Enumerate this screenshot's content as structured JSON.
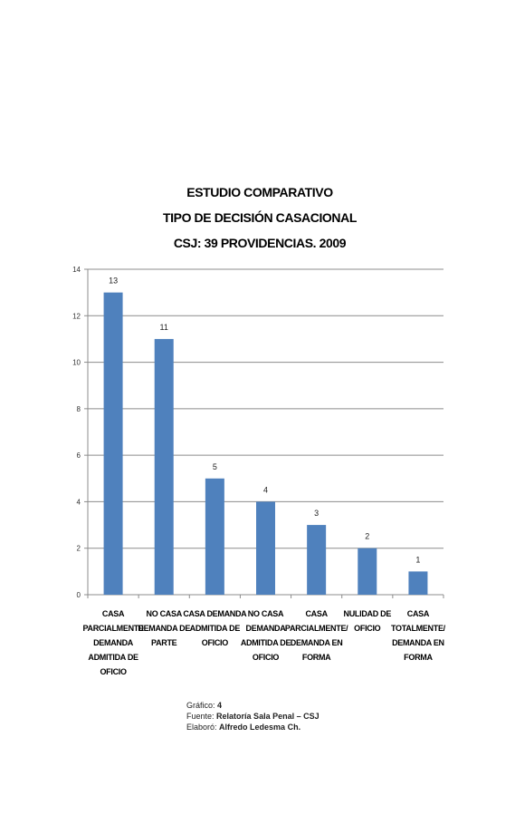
{
  "chart_data": {
    "type": "bar",
    "title": [
      "ESTUDIO COMPARATIVO",
      "TIPO DE DECISIÓN CASACIONAL",
      "CSJ: 39 PROVIDENCIAS. 2009"
    ],
    "categories": [
      [
        "CASA",
        "PARCIALMENTE",
        "DEMANDA",
        "ADMITIDA DE",
        "OFICIO"
      ],
      [
        "NO CASA",
        "DEMANDA DE",
        "PARTE"
      ],
      [
        "CASA DEMANDA",
        "ADMITIDA DE",
        "OFICIO"
      ],
      [
        "NO CASA",
        "DEMANDA",
        "ADMITIDA DE",
        "OFICIO"
      ],
      [
        "CASA",
        "PARCIALMENTE/",
        "DEMANDA    EN",
        "FORMA"
      ],
      [
        "NULIDAD DE",
        "OFICIO"
      ],
      [
        "CASA",
        "TOTALMENTE/",
        "DEMANDA EN",
        "FORMA"
      ]
    ],
    "values": [
      13,
      11,
      5,
      4,
      3,
      2,
      1
    ],
    "ylim": [
      0,
      14
    ],
    "yticks": [
      0,
      2,
      4,
      6,
      8,
      10,
      12,
      14
    ],
    "grid": true,
    "bar_color": "#4f81bd"
  },
  "footer": {
    "grafico_label": "Gráfico:",
    "grafico_value": "4",
    "fuente_label": "Fuente:",
    "fuente_value": "Relatoría Sala Penal – CSJ",
    "elaboro_label": "Elaboró:",
    "elaboro_value": "Alfredo Ledesma Ch."
  }
}
